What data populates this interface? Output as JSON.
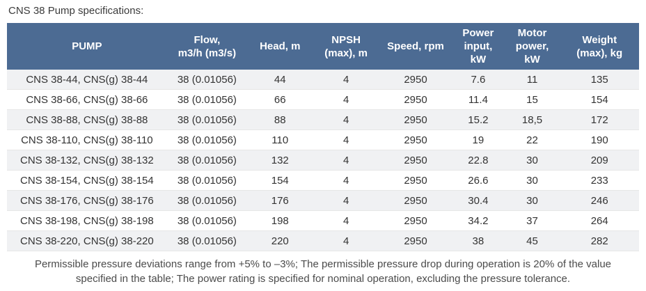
{
  "page": {
    "title": "CNS 38 Pump specifications:"
  },
  "colors": {
    "header_bg": "#4c6b93",
    "header_text": "#ffffff",
    "stripe_bg": "#f0f1f3",
    "body_text": "#333333",
    "footnote_text": "#4b4b4b"
  },
  "table": {
    "columns": [
      {
        "id": "pump",
        "label": "PUMP"
      },
      {
        "id": "flow",
        "label": "Flow,\nm3/h (m3/s)"
      },
      {
        "id": "head",
        "label": "Head, m"
      },
      {
        "id": "npsh",
        "label": "NPSH\n(max), m"
      },
      {
        "id": "speed",
        "label": "Speed, rpm"
      },
      {
        "id": "power_input",
        "label": "Power\ninput,\nkW"
      },
      {
        "id": "motor_power",
        "label": "Motor\npower,\nkW"
      },
      {
        "id": "weight",
        "label": "Weight\n(max), kg"
      }
    ],
    "rows": [
      [
        "CNS 38-44, CNS(g) 38-44",
        "38 (0.01056)",
        "44",
        "4",
        "2950",
        "7.6",
        "11",
        "135"
      ],
      [
        "CNS 38-66, CNS(g) 38-66",
        "38 (0.01056)",
        "66",
        "4",
        "2950",
        "11.4",
        "15",
        "154"
      ],
      [
        "CNS 38-88, CNS(g) 38-88",
        "38 (0.01056)",
        "88",
        "4",
        "2950",
        "15.2",
        "18,5",
        "172"
      ],
      [
        "CNS 38-110, CNS(g) 38-110",
        "38 (0.01056)",
        "110",
        "4",
        "2950",
        "19",
        "22",
        "190"
      ],
      [
        "CNS 38-132, CNS(g) 38-132",
        "38 (0.01056)",
        "132",
        "4",
        "2950",
        "22.8",
        "30",
        "209"
      ],
      [
        "CNS 38-154, CNS(g) 38-154",
        "38 (0.01056)",
        "154",
        "4",
        "2950",
        "26.6",
        "30",
        "233"
      ],
      [
        "CNS 38-176, CNS(g) 38-176",
        "38 (0.01056)",
        "176",
        "4",
        "2950",
        "30.4",
        "30",
        "246"
      ],
      [
        "CNS 38-198, CNS(g) 38-198",
        "38 (0.01056)",
        "198",
        "4",
        "2950",
        "34.2",
        "37",
        "264"
      ],
      [
        "CNS 38-220, CNS(g) 38-220",
        "38 (0.01056)",
        "220",
        "4",
        "2950",
        "38",
        "45",
        "282"
      ]
    ]
  },
  "footnote": "Permissible pressure deviations range from +5% to –3%; The permissible pressure drop during operation is 20% of the value specified in the table; The power rating is specified for nominal operation, excluding the pressure tolerance."
}
